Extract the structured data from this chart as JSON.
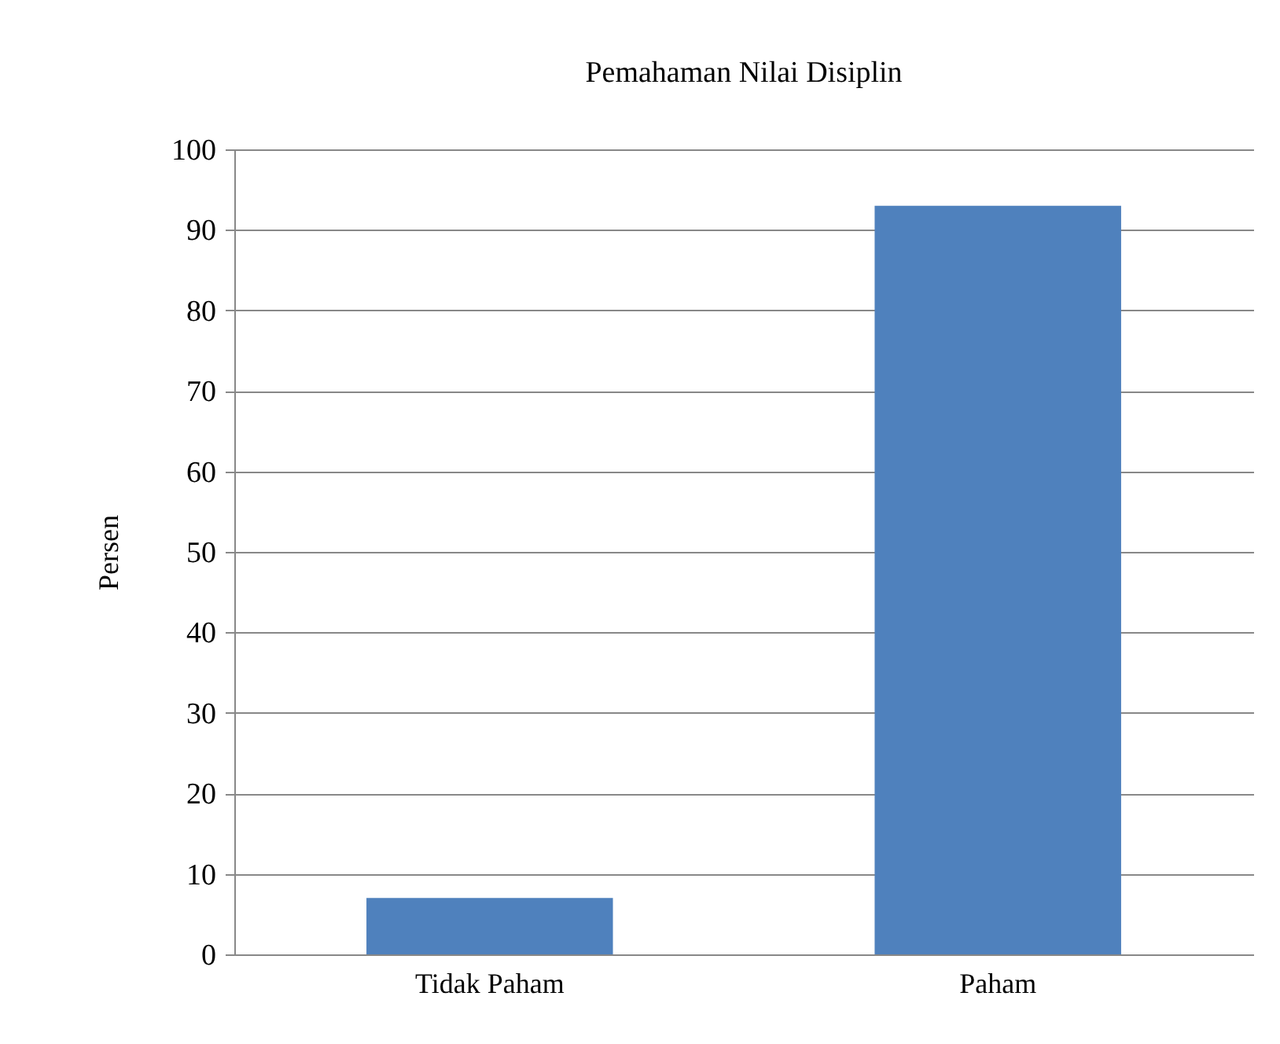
{
  "chart_data": {
    "type": "bar",
    "title": "Pemahaman Nilai Disiplin",
    "ylabel": "Persen",
    "categories": [
      "Tidak Paham",
      "Paham"
    ],
    "values": [
      7,
      93
    ],
    "color": "#4f81bd",
    "ylim": [
      0,
      100
    ],
    "yticks": [
      0,
      10,
      20,
      30,
      40,
      50,
      60,
      70,
      80,
      90,
      100
    ],
    "grid": "y"
  }
}
